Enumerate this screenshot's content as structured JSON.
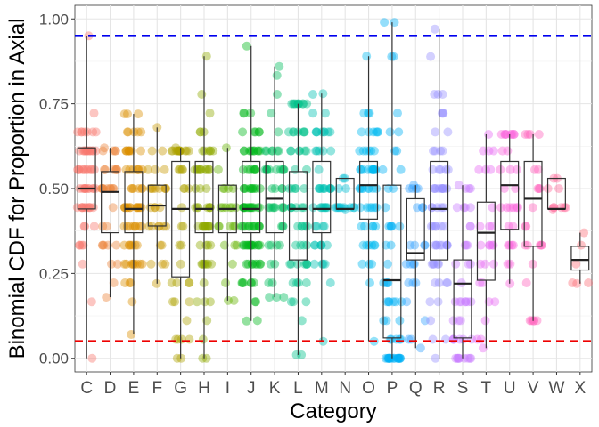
{
  "chart_data": {
    "type": "boxplot",
    "xlabel": "Category",
    "ylabel": "Binomial CDF for Proportion in Axial",
    "ylim": [
      -0.04,
      1.04
    ],
    "yticks": [
      0.0,
      0.25,
      0.5,
      0.75,
      1.0
    ],
    "ytick_labels": [
      "0.00",
      "0.25",
      "0.50",
      "0.75",
      "1.00"
    ],
    "grid": true,
    "legend": "none",
    "reference_lines": [
      {
        "name": "upper-threshold",
        "y": 0.95,
        "color": "#0000ee",
        "style": "dashed"
      },
      {
        "name": "lower-threshold",
        "y": 0.05,
        "color": "#ee0000",
        "style": "dashed"
      }
    ],
    "categories": [
      {
        "label": "C",
        "color": "#F8766D",
        "q1": 0.44,
        "median": 0.5,
        "q3": 0.62,
        "lo": 0.0,
        "hi": 0.95
      },
      {
        "label": "D",
        "color": "#EC8239",
        "q1": 0.37,
        "median": 0.49,
        "q3": 0.55,
        "lo": 0.18,
        "hi": 0.62
      },
      {
        "label": "E",
        "color": "#DB8E00",
        "q1": 0.37,
        "median": 0.44,
        "q3": 0.55,
        "lo": 0.07,
        "hi": 0.72
      },
      {
        "label": "F",
        "color": "#C79800",
        "q1": 0.39,
        "median": 0.45,
        "q3": 0.51,
        "lo": 0.22,
        "hi": 0.68
      },
      {
        "label": "G",
        "color": "#AEA200",
        "q1": 0.24,
        "median": 0.44,
        "q3": 0.58,
        "lo": 0.0,
        "hi": 0.62
      },
      {
        "label": "H",
        "color": "#8FAA00",
        "q1": 0.37,
        "median": 0.44,
        "q3": 0.58,
        "lo": 0.0,
        "hi": 0.89
      },
      {
        "label": "I",
        "color": "#64B200",
        "q1": 0.37,
        "median": 0.44,
        "q3": 0.51,
        "lo": 0.17,
        "hi": 0.62
      },
      {
        "label": "J",
        "color": "#00B81B",
        "q1": 0.37,
        "median": 0.44,
        "q3": 0.58,
        "lo": 0.11,
        "hi": 0.92
      },
      {
        "label": "K",
        "color": "#00BD5C",
        "q1": 0.37,
        "median": 0.47,
        "q3": 0.58,
        "lo": 0.18,
        "hi": 0.86
      },
      {
        "label": "L",
        "color": "#00C08B",
        "q1": 0.29,
        "median": 0.44,
        "q3": 0.55,
        "lo": 0.01,
        "hi": 0.75
      },
      {
        "label": "M",
        "color": "#00C1B2",
        "q1": 0.37,
        "median": 0.44,
        "q3": 0.58,
        "lo": 0.05,
        "hi": 0.78
      },
      {
        "label": "N",
        "color": "#00BFD4",
        "q1": 0.44,
        "median": 0.44,
        "q3": 0.53,
        "lo": 0.44,
        "hi": 0.53
      },
      {
        "label": "O",
        "color": "#00BAF1",
        "q1": 0.41,
        "median": 0.51,
        "q3": 0.58,
        "lo": 0.05,
        "hi": 0.89
      },
      {
        "label": "P",
        "color": "#00B0F6",
        "q1": 0.06,
        "median": 0.23,
        "q3": 0.51,
        "lo": 0.0,
        "hi": 0.99
      },
      {
        "label": "Q",
        "color": "#35A2FF",
        "q1": 0.29,
        "median": 0.31,
        "q3": 0.47,
        "lo": 0.03,
        "hi": 0.51
      },
      {
        "label": "R",
        "color": "#9590FF",
        "q1": 0.29,
        "median": 0.44,
        "q3": 0.58,
        "lo": 0.0,
        "hi": 0.97
      },
      {
        "label": "S",
        "color": "#C77CFF",
        "q1": 0.06,
        "median": 0.22,
        "q3": 0.29,
        "lo": 0.0,
        "hi": 0.51
      },
      {
        "label": "T",
        "color": "#E76BF3",
        "q1": 0.23,
        "median": 0.37,
        "q3": 0.46,
        "lo": 0.03,
        "hi": 0.66
      },
      {
        "label": "U",
        "color": "#FA62DB",
        "q1": 0.38,
        "median": 0.51,
        "q3": 0.58,
        "lo": 0.22,
        "hi": 0.66
      },
      {
        "label": "V",
        "color": "#FF62BC",
        "q1": 0.33,
        "median": 0.47,
        "q3": 0.58,
        "lo": 0.11,
        "hi": 0.66
      },
      {
        "label": "W",
        "color": "#FF6C9A",
        "q1": 0.44,
        "median": 0.44,
        "q3": 0.53,
        "lo": 0.44,
        "hi": 0.53
      },
      {
        "label": "X",
        "color": "#FC7179",
        "q1": 0.26,
        "median": 0.29,
        "q3": 0.33,
        "lo": 0.22,
        "hi": 0.37
      }
    ]
  }
}
